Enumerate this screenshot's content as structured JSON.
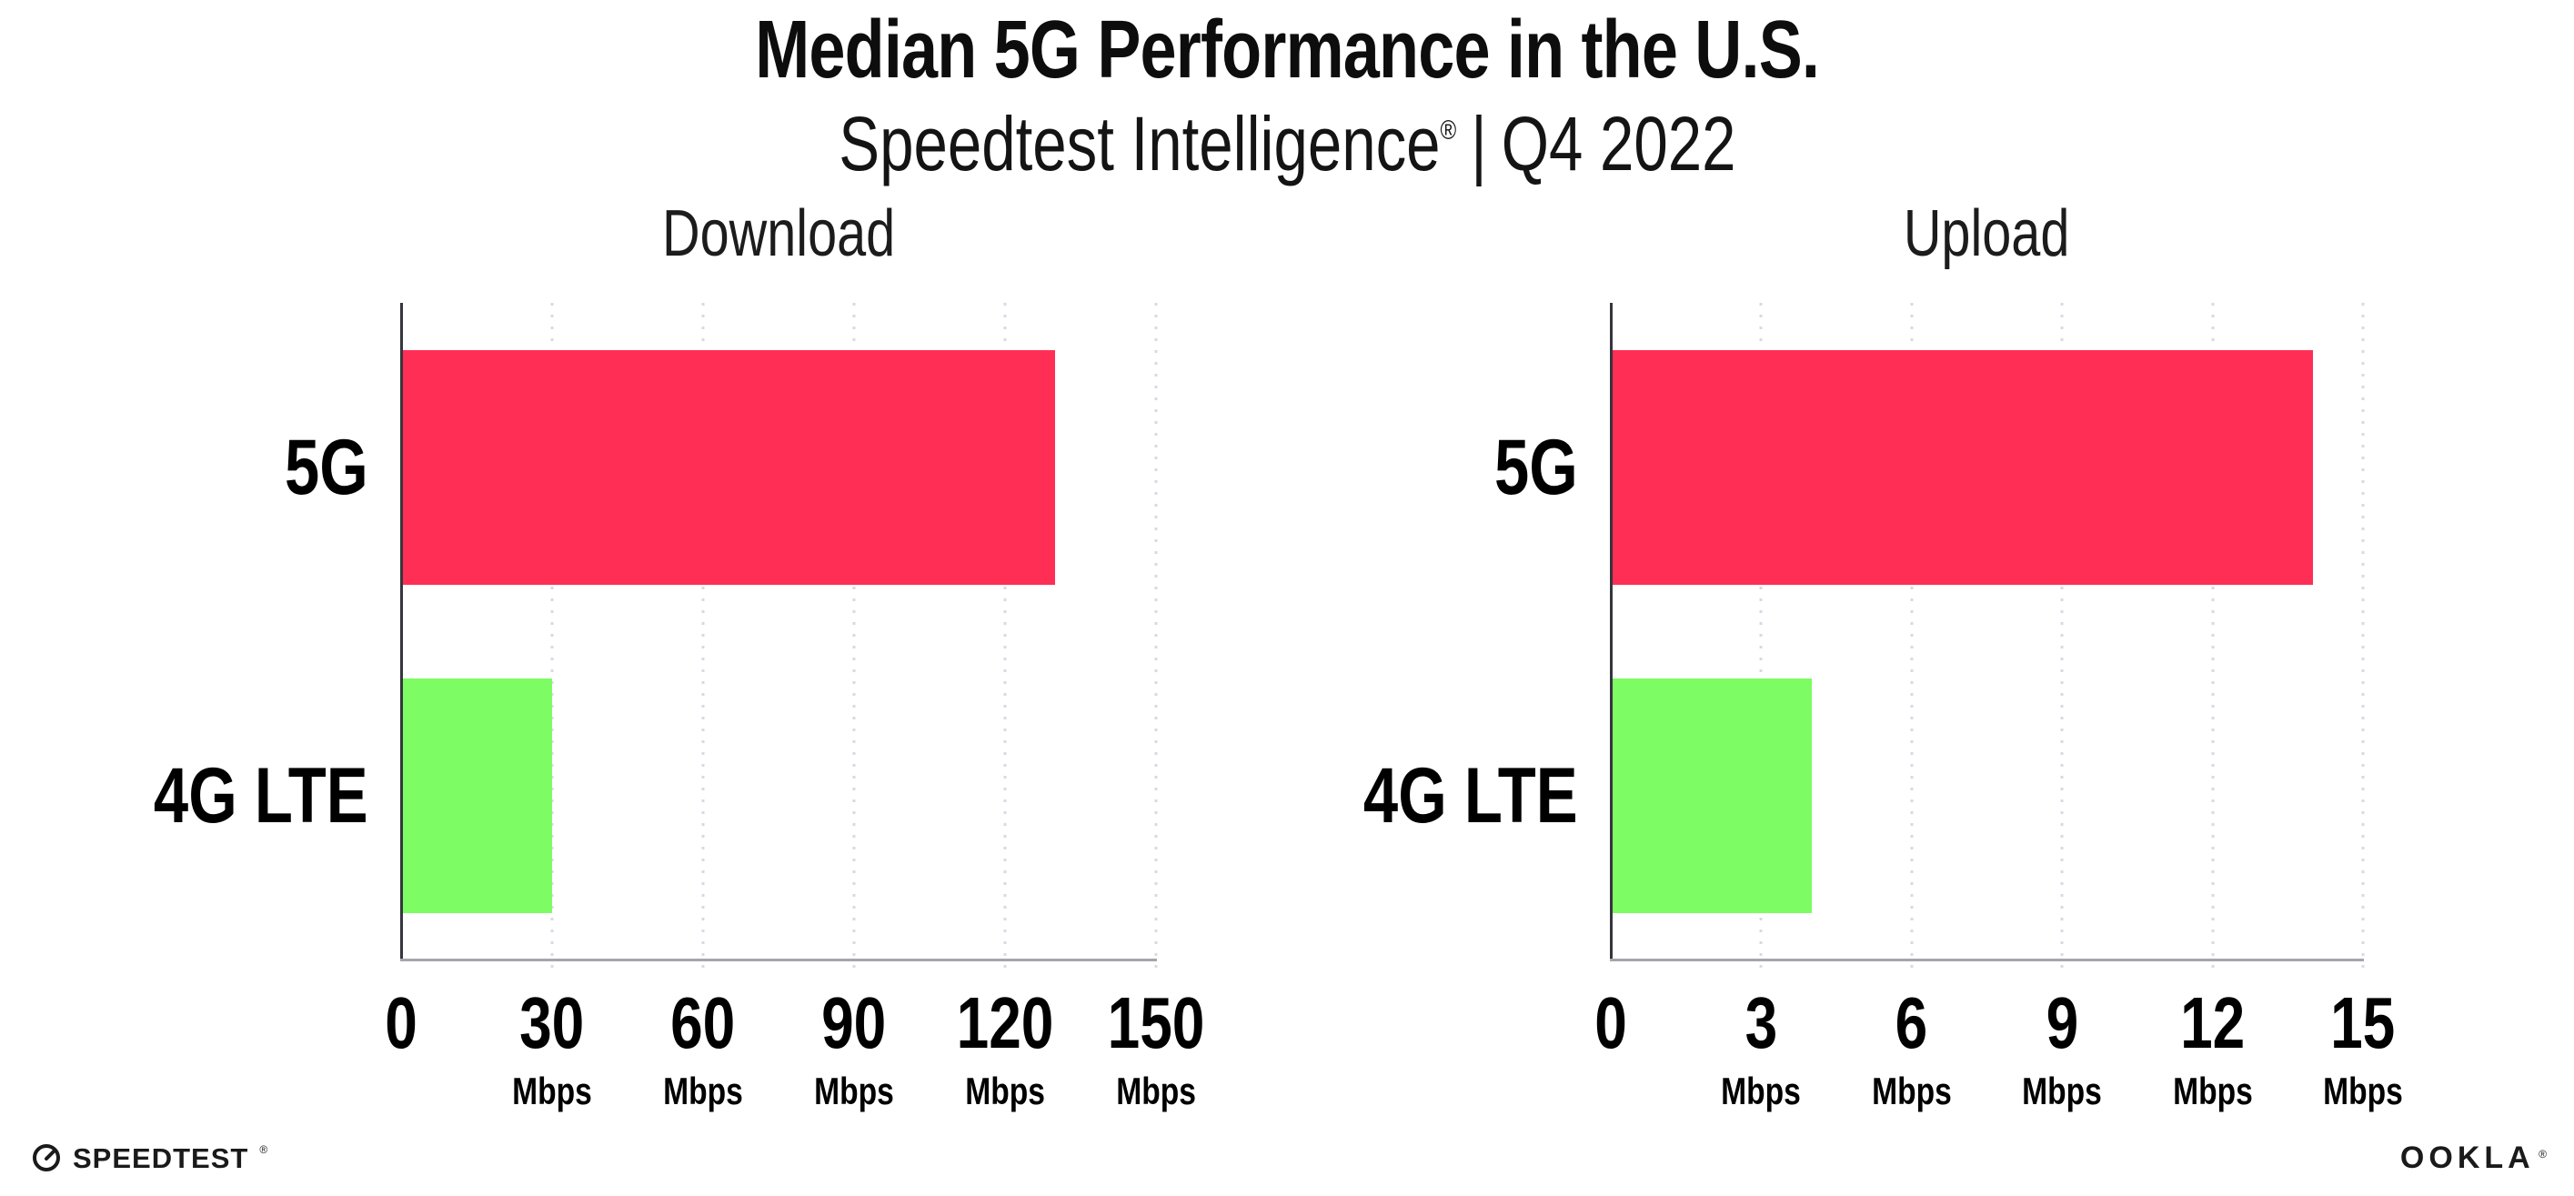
{
  "header": {
    "title": "Median 5G Performance in the U.S.",
    "subtitle": {
      "brand": "Speedtest Intelligence",
      "registered_mark": "®",
      "separator": "|",
      "period": "Q4 2022"
    }
  },
  "chart_data": [
    {
      "type": "bar",
      "orientation": "horizontal",
      "title": "Download",
      "categories": [
        "5G",
        "4G LTE"
      ],
      "values": [
        130,
        30
      ],
      "unit": "Mbps",
      "xlim": [
        0,
        150
      ],
      "xticks": [
        0,
        30,
        60,
        90,
        120,
        150
      ],
      "xtick_unit_label": "Mbps",
      "bar_colors": [
        "#ff2e55",
        "#7dfc64"
      ],
      "grid": "vertical-dotted",
      "legend": false
    },
    {
      "type": "bar",
      "orientation": "horizontal",
      "title": "Upload",
      "categories": [
        "5G",
        "4G LTE"
      ],
      "values": [
        14,
        4
      ],
      "unit": "Mbps",
      "xlim": [
        0,
        15
      ],
      "xticks": [
        0,
        3,
        6,
        9,
        12,
        15
      ],
      "xtick_unit_label": "Mbps",
      "bar_colors": [
        "#ff2e55",
        "#7dfc64"
      ],
      "grid": "vertical-dotted",
      "legend": false
    }
  ],
  "footer": {
    "speedtest_wordmark": "SPEEDTEST",
    "speedtest_mark": "®",
    "ookla_wordmark": "OOKLA",
    "ookla_mark": "®"
  },
  "colors": {
    "bar_5g": "#ff2e55",
    "bar_4g_lte": "#7dfc64",
    "gridline": "#d9d9e4",
    "x_axis_line": "#a5a5ad",
    "y_axis_line": "#35353d",
    "text": "#0d0d0d"
  }
}
